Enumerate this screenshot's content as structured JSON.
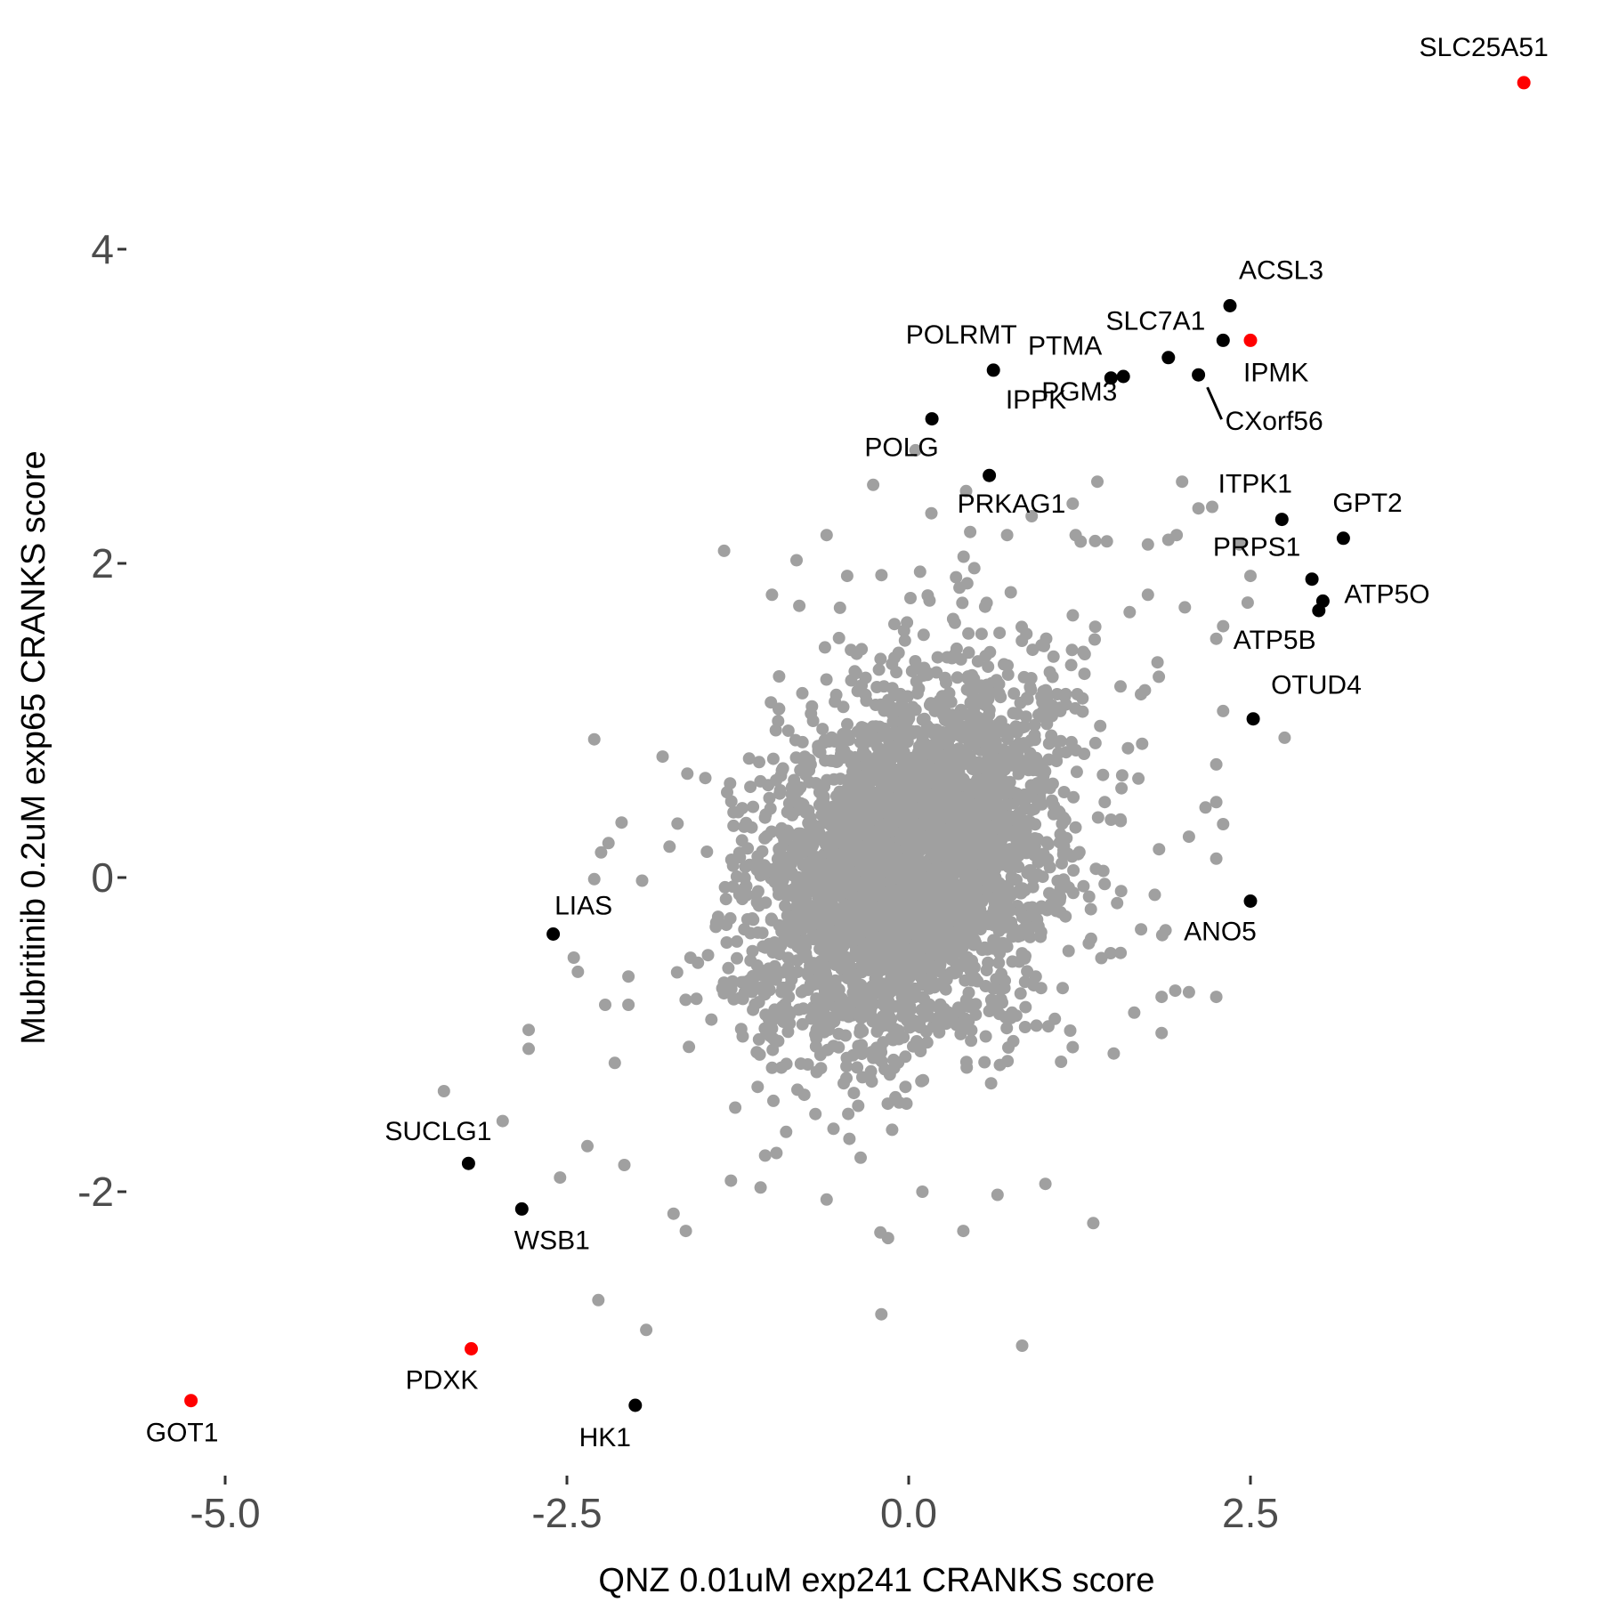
{
  "chart_data": {
    "type": "scatter",
    "xlabel": "QNZ 0.01uM exp241 CRANKS score",
    "ylabel": "Mubritinib 0.2uM exp65 CRANKS score",
    "xlim": [
      -5.5,
      4.9
    ],
    "ylim": [
      -3.75,
      5.65
    ],
    "x_ticks": [
      {
        "value": -5.0,
        "label": "-5.0"
      },
      {
        "value": -2.5,
        "label": "-2.5"
      },
      {
        "value": 0.0,
        "label": "0.0"
      },
      {
        "value": 2.5,
        "label": "2.5"
      }
    ],
    "y_ticks": [
      {
        "value": -2,
        "label": "-2"
      },
      {
        "value": 0,
        "label": "0"
      },
      {
        "value": 2,
        "label": "2"
      },
      {
        "value": 4,
        "label": "4"
      }
    ],
    "grid": false,
    "background_cloud": {
      "description": "bulk of genes, approximately bivariate normal",
      "color": "#a0a0a0",
      "approx_count": 3500,
      "center": [
        0.0,
        0.1
      ],
      "sd": [
        0.55,
        0.6
      ],
      "correlation": 0.3
    },
    "grey_outliers": [
      [
        -3.4,
        -1.36
      ],
      [
        -2.35,
        -1.71
      ],
      [
        -2.55,
        -1.91
      ],
      [
        -2.97,
        -1.55
      ],
      [
        -2.08,
        -1.83
      ],
      [
        -2.27,
        -2.69
      ],
      [
        -1.92,
        -2.88
      ],
      [
        -1.63,
        -2.25
      ],
      [
        -1.72,
        -2.14
      ],
      [
        -0.2,
        -2.78
      ],
      [
        0.83,
        -2.98
      ],
      [
        0.4,
        -2.25
      ],
      [
        1.35,
        -2.2
      ],
      [
        -2.25,
        0.16
      ],
      [
        -2.05,
        -0.63
      ],
      [
        -1.8,
        0.77
      ],
      [
        -2.45,
        -0.51
      ],
      [
        -1.95,
        -0.02
      ],
      [
        -2.42,
        -0.6
      ],
      [
        -2.78,
        -0.97
      ],
      [
        -2.78,
        -1.09
      ],
      [
        -2.22,
        -0.81
      ],
      [
        -2.05,
        -0.81
      ],
      [
        -2.15,
        -1.18
      ],
      [
        -1.35,
        2.08
      ],
      [
        -0.82,
        2.02
      ],
      [
        -0.8,
        1.73
      ],
      [
        -0.6,
        2.18
      ],
      [
        -0.45,
        1.92
      ],
      [
        -1.0,
        1.8
      ],
      [
        -0.26,
        2.5
      ],
      [
        0.05,
        2.72
      ],
      [
        0.42,
        2.46
      ],
      [
        0.45,
        2.2
      ],
      [
        0.72,
        2.18
      ],
      [
        0.9,
        2.3
      ],
      [
        1.2,
        2.38
      ],
      [
        1.38,
        2.52
      ],
      [
        1.45,
        2.14
      ],
      [
        2.0,
        2.52
      ],
      [
        1.9,
        2.15
      ],
      [
        1.96,
        2.18
      ],
      [
        2.22,
        2.36
      ],
      [
        2.12,
        2.35
      ],
      [
        1.75,
        2.12
      ],
      [
        2.3,
        1.6
      ],
      [
        2.42,
        2.12
      ],
      [
        2.5,
        1.92
      ],
      [
        2.48,
        1.75
      ],
      [
        2.25,
        1.52
      ],
      [
        2.02,
        1.72
      ],
      [
        1.75,
        1.8
      ],
      [
        2.3,
        1.06
      ],
      [
        1.82,
        1.37
      ],
      [
        2.75,
        0.89
      ],
      [
        2.25,
        0.72
      ],
      [
        2.05,
        0.26
      ],
      [
        2.25,
        0.48
      ],
      [
        2.25,
        -0.76
      ],
      [
        1.95,
        -0.72
      ],
      [
        2.05,
        -0.73
      ],
      [
        1.85,
        -0.99
      ],
      [
        1.85,
        -0.76
      ],
      [
        1.7,
        -0.33
      ],
      [
        1.55,
        -0.48
      ],
      [
        1.8,
        -0.11
      ],
      [
        2.25,
        0.12
      ],
      [
        2.3,
        0.34
      ],
      [
        1.5,
        -1.12
      ],
      [
        1.2,
        -1.08
      ],
      [
        1.65,
        -0.86
      ],
      [
        1.0,
        -1.95
      ],
      [
        0.65,
        -2.02
      ],
      [
        0.1,
        -2.0
      ],
      [
        -0.6,
        -2.05
      ],
      [
        -1.05,
        -1.77
      ],
      [
        -1.3,
        -1.93
      ],
      [
        -2.3,
        0.88
      ],
      [
        -2.3,
        -0.01
      ],
      [
        -2.1,
        0.35
      ]
    ],
    "highlight_series": [
      {
        "color": "#000000",
        "points": [
          {
            "label": "ACSL3",
            "x": 2.35,
            "y": 3.64
          },
          {
            "label": "SLC7A1",
            "x": 2.3,
            "y": 3.42
          },
          {
            "label": "POLRMT",
            "x": 0.62,
            "y": 3.23
          },
          {
            "label": "PTMA",
            "x": 1.48,
            "y": 3.18
          },
          {
            "label": "IPPK",
            "x": 1.57,
            "y": 3.19
          },
          {
            "label": "PGM3",
            "x": 1.9,
            "y": 3.31
          },
          {
            "label": "CXorf56",
            "x": 2.12,
            "y": 3.2
          },
          {
            "label": "POLG",
            "x": 0.17,
            "y": 2.92
          },
          {
            "label": "PRKAG1",
            "x": 0.59,
            "y": 2.56
          },
          {
            "label": "ITPK1",
            "x": 2.73,
            "y": 2.28
          },
          {
            "label": "GPT2",
            "x": 3.18,
            "y": 2.16
          },
          {
            "label": "PRPS1",
            "x": 2.95,
            "y": 1.9
          },
          {
            "label": "ATP5O",
            "x": 3.03,
            "y": 1.76
          },
          {
            "label": "ATP5B",
            "x": 3.0,
            "y": 1.7
          },
          {
            "label": "OTUD4",
            "x": 2.52,
            "y": 1.01
          },
          {
            "label": "ANO5",
            "x": 2.5,
            "y": -0.15
          },
          {
            "label": "LIAS",
            "x": -2.6,
            "y": -0.36
          },
          {
            "label": "SUCLG1",
            "x": -3.22,
            "y": -1.82
          },
          {
            "label": "WSB1",
            "x": -2.83,
            "y": -2.11
          },
          {
            "label": "HK1",
            "x": -2.0,
            "y": -3.36
          }
        ]
      },
      {
        "color": "#ff0000",
        "points": [
          {
            "label": "SLC25A51",
            "x": 4.5,
            "y": 5.06
          },
          {
            "label": "IPMK",
            "x": 2.5,
            "y": 3.42
          },
          {
            "label": "PDXK",
            "x": -3.2,
            "y": -3.0
          },
          {
            "label": "GOT1",
            "x": -5.25,
            "y": -3.33
          }
        ]
      }
    ]
  }
}
